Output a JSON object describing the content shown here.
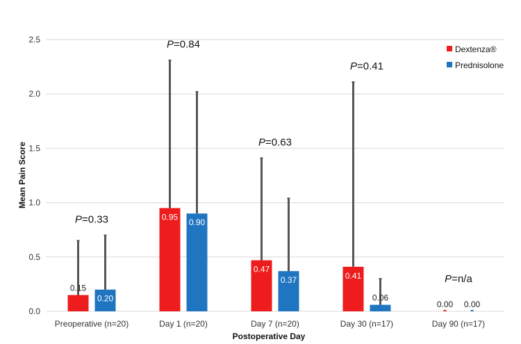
{
  "chart_data": {
    "type": "bar",
    "title": "",
    "xlabel": "Postoperative Day",
    "ylabel": "Mean Pain Score",
    "ylim": [
      0,
      2.5
    ],
    "yticks": [
      "0.0",
      "0.5",
      "1.0",
      "1.5",
      "2.0",
      "2.5"
    ],
    "categories": [
      "Preoperative (n=20)",
      "Day 1 (n=20)",
      "Day 7 (n=20)",
      "Day 30 (n=17)",
      "Day 90 (n=17)"
    ],
    "series": [
      {
        "name": "Dextenza®",
        "color": "#ee1c1c",
        "values": [
          0.15,
          0.95,
          0.47,
          0.41,
          0.0
        ],
        "labels": [
          "0.15",
          "0.95",
          "0.47",
          "0.41",
          "0.00"
        ],
        "error_upper": [
          0.65,
          2.31,
          1.41,
          2.11,
          0.0
        ]
      },
      {
        "name": "Prednisolone",
        "color": "#1f75c0",
        "values": [
          0.2,
          0.9,
          0.37,
          0.06,
          0.0
        ],
        "labels": [
          "0.20",
          "0.90",
          "0.37",
          "0.06",
          "0.00"
        ],
        "error_upper": [
          0.7,
          2.02,
          1.04,
          0.3,
          0.0
        ]
      }
    ],
    "p_values": [
      {
        "prefix": "P",
        "value": "=0.33"
      },
      {
        "prefix": "P",
        "value": "=0.84"
      },
      {
        "prefix": "P",
        "value": "=0.63"
      },
      {
        "prefix": "P",
        "value": "=0.41"
      },
      {
        "prefix": "P",
        "value": "=n/a"
      }
    ],
    "legend_position": "top-right",
    "grid": true
  }
}
